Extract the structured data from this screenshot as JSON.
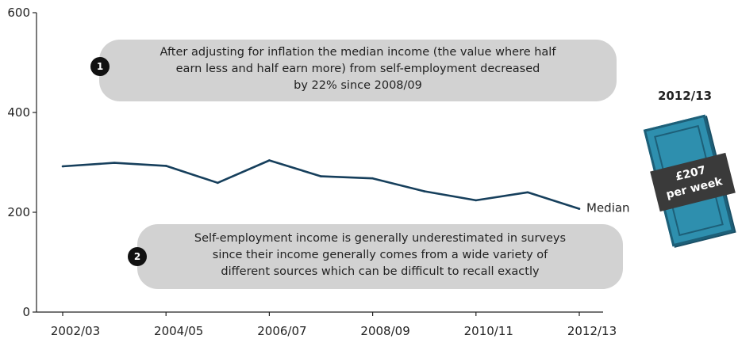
{
  "chart_data": {
    "type": "line",
    "title": "",
    "xlabel": "",
    "ylabel": "",
    "categories": [
      "2002/03",
      "2003/04",
      "2004/05",
      "2005/06",
      "2006/07",
      "2007/08",
      "2008/09",
      "2009/10",
      "2010/11",
      "2011/12",
      "2012/13"
    ],
    "x_tick_labels": [
      "2002/03",
      "2004/05",
      "2006/07",
      "2008/09",
      "2010/11",
      "2012/13"
    ],
    "y_ticks": [
      0,
      200,
      400,
      600
    ],
    "ylim": [
      0,
      600
    ],
    "grid": false,
    "series": [
      {
        "name": "Median",
        "values": [
          292,
          299,
          293,
          259,
          304,
          272,
          268,
          242,
          224,
          240,
          207
        ],
        "color": "#163f5c"
      }
    ]
  },
  "annotations": [
    {
      "number": "1",
      "text": "After adjusting for inflation the median income (the value where half\nearn less and half earn more) from self-employment decreased\nby 22% since 2008/09"
    },
    {
      "number": "2",
      "text": "Self-employment income is generally underestimated in surveys\nsince their income generally comes from a wide variety of\ndifferent sources which can be difficult to recall exactly"
    }
  ],
  "snapshot": {
    "year": "2012/13",
    "amount": "£207",
    "unit": "per week"
  },
  "colors": {
    "line": "#163f5c",
    "callout_bg": "#d2d2d2",
    "banknote": "#2e8fae",
    "band": "#3a3a3a"
  }
}
